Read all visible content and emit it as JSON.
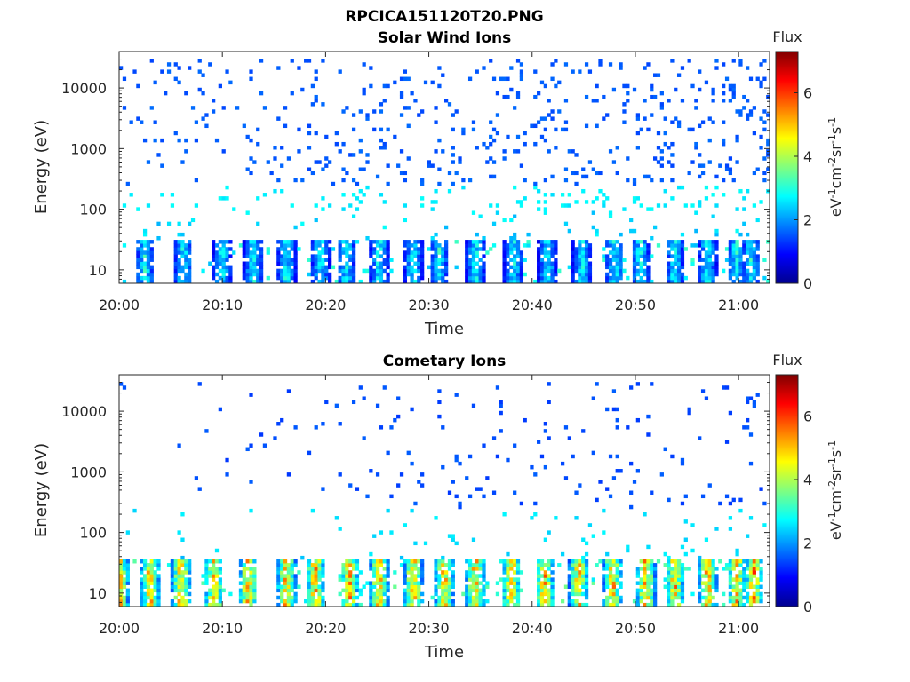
{
  "figure_title": "RPCICA151120T20.PNG",
  "chart_data": [
    {
      "type": "heatmap",
      "title": "Solar Wind Ions",
      "xlabel": "Time",
      "ylabel": "Energy (eV)",
      "x_ticks": [
        "20:00",
        "20:10",
        "20:20",
        "20:30",
        "20:40",
        "20:50",
        "21:00"
      ],
      "x_range_minutes": [
        0,
        63
      ],
      "y_scale": "log",
      "y_ticks": [
        10,
        100,
        1000,
        10000
      ],
      "y_tick_labels": [
        "10",
        "100",
        "1000",
        "10000"
      ],
      "ylim": [
        6,
        40000
      ],
      "colorbar": {
        "title": "Flux",
        "label": "eV-1cm-2sr-1s-1",
        "range": [
          0,
          7.3
        ],
        "ticks": [
          0,
          2,
          4,
          6
        ],
        "colormap": "jet"
      },
      "grid": false,
      "pattern": {
        "low_energy_bursts_minutes": [
          2.5,
          6.2,
          10.0,
          13.0,
          16.2,
          19.5,
          22.0,
          25.2,
          28.5,
          31.0,
          34.5,
          38.2,
          41.5,
          44.8,
          48.0,
          50.5,
          53.8,
          57.0,
          59.8,
          61.2
        ],
        "low_energy_band_eV": [
          6,
          30
        ],
        "low_energy_level": 3.4,
        "sparse_high_energy_band_eV": [
          100,
          30000
        ],
        "sparse_level": 1.4,
        "density_trend": "increasing with time"
      }
    },
    {
      "type": "heatmap",
      "title": "Cometary Ions",
      "xlabel": "Time",
      "ylabel": "Energy (eV)",
      "x_ticks": [
        "20:00",
        "20:10",
        "20:20",
        "20:30",
        "20:40",
        "20:50",
        "21:00"
      ],
      "x_range_minutes": [
        0,
        63
      ],
      "y_scale": "log",
      "y_ticks": [
        10,
        100,
        1000,
        10000
      ],
      "y_tick_labels": [
        "10",
        "100",
        "1000",
        "10000"
      ],
      "ylim": [
        6,
        40000
      ],
      "colorbar": {
        "title": "Flux",
        "label": "eV-1cm-2sr-1s-1",
        "range": [
          0,
          7.3
        ],
        "ticks": [
          0,
          2,
          4,
          6
        ],
        "colormap": "jet"
      },
      "grid": false,
      "pattern": {
        "low_energy_bursts_minutes": [
          0.0,
          3.0,
          6.0,
          9.2,
          12.5,
          16.2,
          19.0,
          22.3,
          25.2,
          28.5,
          31.5,
          34.5,
          38.0,
          41.2,
          44.5,
          47.8,
          51.0,
          53.8,
          57.0,
          59.8,
          61.5
        ],
        "low_energy_band_eV": [
          6,
          35
        ],
        "burst_peak_level": 6.3,
        "sparse_high_energy_band_eV": [
          50,
          30000
        ],
        "sparse_level": 1.3,
        "density_trend": "increasing with time"
      }
    }
  ]
}
